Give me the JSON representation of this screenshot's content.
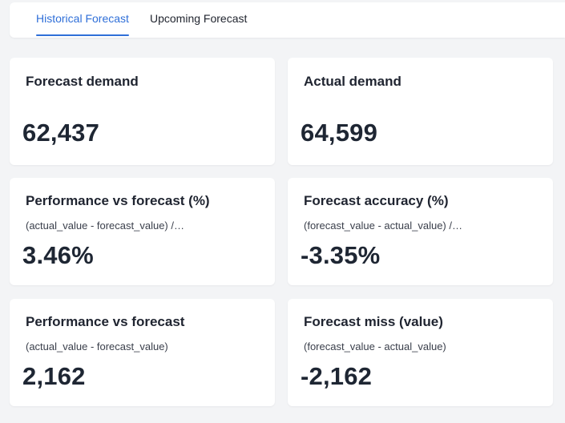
{
  "tabs": [
    {
      "label": "Historical Forecast",
      "active": true
    },
    {
      "label": "Upcoming Forecast",
      "active": false
    }
  ],
  "accent_color": "#2f6fd8",
  "cards": [
    {
      "title": "Forecast demand",
      "formula": "",
      "value": "62,437"
    },
    {
      "title": "Actual demand",
      "formula": "",
      "value": "64,599"
    },
    {
      "title": "Performance vs forecast (%)",
      "formula": "(actual_value - forecast_value) /…",
      "value": "3.46%"
    },
    {
      "title": "Forecast accuracy (%)",
      "formula": "(forecast_value - actual_value) /…",
      "value": "-3.35%"
    },
    {
      "title": "Performance vs forecast",
      "formula": "(actual_value - forecast_value)",
      "value": "2,162"
    },
    {
      "title": "Forecast miss (value)",
      "formula": "(forecast_value - actual_value)",
      "value": "-2,162"
    }
  ]
}
